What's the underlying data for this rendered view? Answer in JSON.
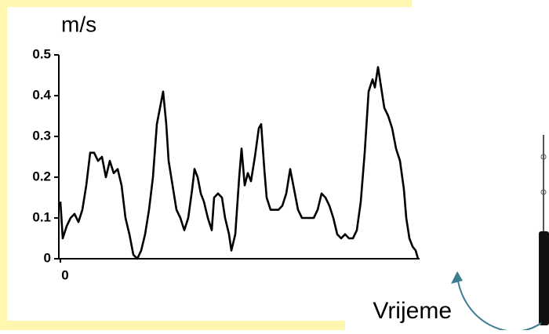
{
  "chart_data": {
    "type": "line",
    "y_label": "m/s",
    "x_label": "Vrijeme",
    "x": [
      0,
      3,
      8,
      13,
      18,
      23,
      28,
      33,
      38,
      43,
      48,
      53,
      58,
      63,
      68,
      73,
      78,
      83,
      88,
      93,
      98,
      103,
      108,
      113,
      118,
      123,
      128,
      131,
      135,
      138,
      143,
      148,
      153,
      158,
      163,
      168,
      171,
      175,
      179,
      183,
      188,
      193,
      196,
      201,
      206,
      210,
      215,
      218,
      223,
      228,
      231,
      235,
      239,
      243,
      248,
      253,
      256,
      260,
      263,
      268,
      273,
      278,
      283,
      288,
      293,
      298,
      303,
      308,
      313,
      318,
      323,
      328,
      333,
      338,
      343,
      348,
      353,
      358,
      363,
      368,
      373,
      378,
      383,
      388,
      393,
      398,
      401,
      405,
      409,
      413,
      418,
      423,
      428,
      433,
      438,
      441,
      445,
      449,
      453,
      456
    ],
    "values": [
      0.14,
      0.05,
      0.08,
      0.1,
      0.11,
      0.09,
      0.12,
      0.18,
      0.26,
      0.26,
      0.24,
      0.25,
      0.2,
      0.24,
      0.21,
      0.22,
      0.18,
      0.1,
      0.06,
      0.01,
      0,
      0.02,
      0.06,
      0.12,
      0.2,
      0.33,
      0.38,
      0.41,
      0.33,
      0.24,
      0.18,
      0.12,
      0.1,
      0.07,
      0.1,
      0.17,
      0.22,
      0.2,
      0.16,
      0.14,
      0.1,
      0.07,
      0.15,
      0.16,
      0.15,
      0.1,
      0.06,
      0.02,
      0.06,
      0.2,
      0.27,
      0.18,
      0.21,
      0.19,
      0.25,
      0.32,
      0.33,
      0.22,
      0.15,
      0.12,
      0.12,
      0.12,
      0.13,
      0.16,
      0.22,
      0.17,
      0.12,
      0.1,
      0.1,
      0.1,
      0.1,
      0.12,
      0.16,
      0.15,
      0.13,
      0.1,
      0.06,
      0.05,
      0.06,
      0.05,
      0.05,
      0.07,
      0.14,
      0.26,
      0.41,
      0.44,
      0.42,
      0.47,
      0.42,
      0.37,
      0.35,
      0.32,
      0.27,
      0.24,
      0.17,
      0.1,
      0.05,
      0.03,
      0.02,
      0
    ],
    "color": "#000000",
    "xlim": [
      0,
      456
    ],
    "xticks": [
      0
    ],
    "ylim": [
      0,
      0.5
    ],
    "yticks": [
      0,
      0.1,
      0.2,
      0.3,
      0.4,
      0.5
    ]
  }
}
